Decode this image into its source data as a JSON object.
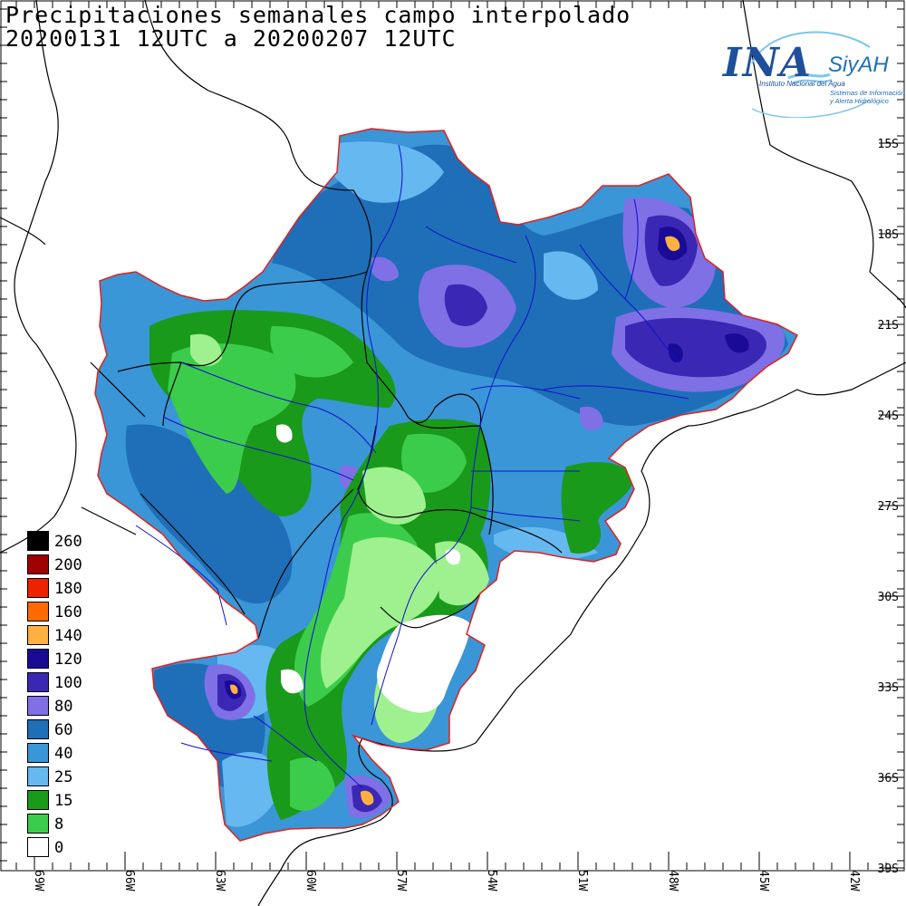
{
  "title": {
    "line1": "Precipitaciones semanales campo interpolado",
    "line2": "20200131 12UTC a 20200207 12UTC"
  },
  "logo": {
    "main": "INA",
    "secondary": "SiyAH",
    "subtitle_agency": "Instituto Nacional del Agua",
    "subtitle_system_1": "Sistemas de Información",
    "subtitle_system_2": "y Alerta Hidrológico"
  },
  "axes": {
    "lat_labels": [
      "15S",
      "18S",
      "21S",
      "24S",
      "27S",
      "30S",
      "33S",
      "36S",
      "39S"
    ],
    "lon_labels": [
      "69W",
      "66W",
      "63W",
      "60W",
      "57W",
      "54W",
      "51W",
      "48W",
      "45W",
      "42W"
    ]
  },
  "legend": {
    "items": [
      {
        "label": "260",
        "color": "#000000"
      },
      {
        "label": "200",
        "color": "#a00000"
      },
      {
        "label": "180",
        "color": "#ee2200"
      },
      {
        "label": "160",
        "color": "#ff6a00"
      },
      {
        "label": "140",
        "color": "#ffb040"
      },
      {
        "label": "120",
        "color": "#1a0b96"
      },
      {
        "label": "100",
        "color": "#3a28b4"
      },
      {
        "label": "80",
        "color": "#7f70e6"
      },
      {
        "label": "60",
        "color": "#1e6fb8"
      },
      {
        "label": "40",
        "color": "#3a96d6"
      },
      {
        "label": "25",
        "color": "#66b8f0"
      },
      {
        "label": "15",
        "color": "#1a9a1a"
      },
      {
        "label": "8",
        "color": "#3ccc4c"
      },
      {
        "label": "0",
        "color": "#ffffff"
      }
    ]
  },
  "colors": {
    "basin_border": "#e02020",
    "rivers": "#1010cc",
    "political_borders": "#000000",
    "c0": "#ffffff",
    "c8": "#3ccc4c",
    "c8light": "#9ff08f",
    "c15": "#1a9a1a",
    "c25": "#66b8f0",
    "c40": "#3a96d6",
    "c60": "#1e6fb8",
    "c80": "#7f70e6",
    "c100": "#3a28b4",
    "c120": "#1a0b96",
    "c140": "#ffb040"
  }
}
